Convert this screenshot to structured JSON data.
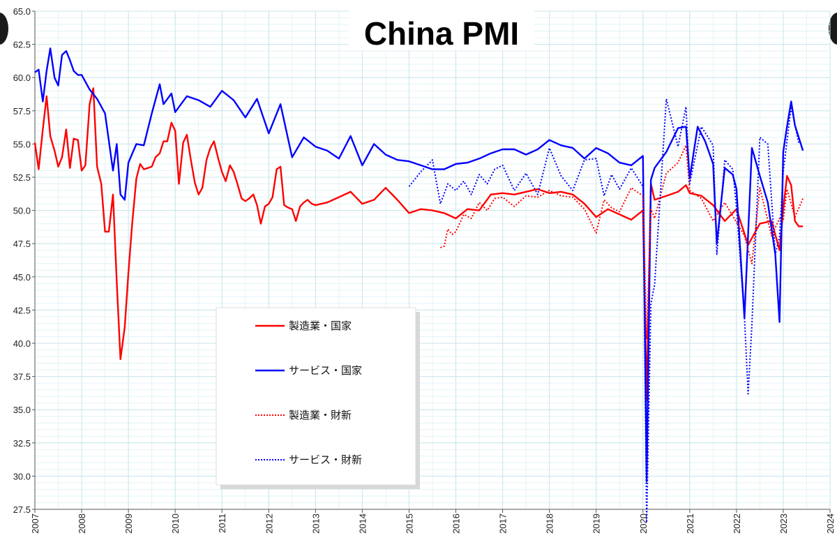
{
  "chart_data": {
    "type": "line",
    "title": "China PMI",
    "xlabel": "",
    "ylabel": "",
    "ylim": [
      27.5,
      65.0
    ],
    "xlim": [
      2007.0,
      2024.0
    ],
    "y_ticks": [
      "27.5",
      "30.0",
      "32.5",
      "35.0",
      "37.5",
      "40.0",
      "42.5",
      "45.0",
      "47.5",
      "50.0",
      "52.5",
      "55.0",
      "57.5",
      "60.0",
      "62.5",
      "65.0"
    ],
    "x_ticks": [
      "2007",
      "2008",
      "2009",
      "2010",
      "2011",
      "2012",
      "2013",
      "2014",
      "2015",
      "2016",
      "2017",
      "2018",
      "2019",
      "2020",
      "2021",
      "2022",
      "2023",
      "2024"
    ],
    "grid": true,
    "legend_position": "center-left",
    "series": [
      {
        "name": "製造業・国家",
        "color": "#ff0000",
        "style": "solid",
        "x": [
          2007.0,
          2007.08,
          2007.17,
          2007.25,
          2007.33,
          2007.42,
          2007.5,
          2007.58,
          2007.67,
          2007.75,
          2007.83,
          2007.92,
          2008.0,
          2008.08,
          2008.17,
          2008.25,
          2008.33,
          2008.42,
          2008.5,
          2008.58,
          2008.67,
          2008.75,
          2008.83,
          2008.92,
          2009.0,
          2009.08,
          2009.17,
          2009.25,
          2009.33,
          2009.42,
          2009.5,
          2009.58,
          2009.67,
          2009.75,
          2009.83,
          2009.92,
          2010.0,
          2010.08,
          2010.17,
          2010.25,
          2010.33,
          2010.42,
          2010.5,
          2010.58,
          2010.67,
          2010.75,
          2010.83,
          2010.92,
          2011.0,
          2011.08,
          2011.17,
          2011.25,
          2011.33,
          2011.42,
          2011.5,
          2011.58,
          2011.67,
          2011.75,
          2011.83,
          2011.92,
          2012.0,
          2012.08,
          2012.17,
          2012.25,
          2012.33,
          2012.42,
          2012.5,
          2012.58,
          2012.67,
          2012.75,
          2012.83,
          2012.92,
          2013.0,
          2013.25,
          2013.5,
          2013.75,
          2014.0,
          2014.25,
          2014.5,
          2014.75,
          2015.0,
          2015.25,
          2015.5,
          2015.75,
          2016.0,
          2016.25,
          2016.5,
          2016.75,
          2017.0,
          2017.25,
          2017.5,
          2017.75,
          2018.0,
          2018.25,
          2018.5,
          2018.75,
          2019.0,
          2019.25,
          2019.5,
          2019.75,
          2020.0,
          2020.08,
          2020.17,
          2020.25,
          2020.5,
          2020.75,
          2020.92,
          2021.0,
          2021.25,
          2021.5,
          2021.75,
          2022.0,
          2022.25,
          2022.5,
          2022.75,
          2022.92,
          2023.0,
          2023.08,
          2023.17,
          2023.25,
          2023.33,
          2023.42
        ],
        "values": [
          55.1,
          53.1,
          56.1,
          58.6,
          55.6,
          54.5,
          53.3,
          54.0,
          56.1,
          53.2,
          55.4,
          55.3,
          53.0,
          53.4,
          58.0,
          59.2,
          53.3,
          52.0,
          48.4,
          48.4,
          51.2,
          44.6,
          38.8,
          41.2,
          45.3,
          49.0,
          52.4,
          53.5,
          53.1,
          53.2,
          53.3,
          54.0,
          54.3,
          55.2,
          55.2,
          56.6,
          56.0,
          52.0,
          55.1,
          55.7,
          53.9,
          52.1,
          51.2,
          51.7,
          53.8,
          54.7,
          55.2,
          53.9,
          52.9,
          52.2,
          53.4,
          52.9,
          52.0,
          50.9,
          50.7,
          50.9,
          51.2,
          50.4,
          49.0,
          50.3,
          50.5,
          51.0,
          53.1,
          53.3,
          50.4,
          50.2,
          50.1,
          49.2,
          50.3,
          50.6,
          50.8,
          50.5,
          50.4,
          50.6,
          51.0,
          51.4,
          50.5,
          50.8,
          51.7,
          50.8,
          49.8,
          50.1,
          50.0,
          49.8,
          49.4,
          50.1,
          50.0,
          51.2,
          51.3,
          51.2,
          51.4,
          51.6,
          51.3,
          51.4,
          51.2,
          50.5,
          49.5,
          50.1,
          49.7,
          49.3,
          50.0,
          35.7,
          52.0,
          50.8,
          51.1,
          51.4,
          51.9,
          51.3,
          51.1,
          50.4,
          49.2,
          50.1,
          47.4,
          49.0,
          49.2,
          47.0,
          50.1,
          52.6,
          51.9,
          49.2,
          48.8,
          48.8
        ]
      },
      {
        "name": "サービス・国家",
        "color": "#0000ff",
        "style": "solid",
        "x": [
          2007.0,
          2007.08,
          2007.17,
          2007.25,
          2007.33,
          2007.42,
          2007.5,
          2007.58,
          2007.67,
          2007.75,
          2007.83,
          2007.92,
          2008.0,
          2008.17,
          2008.33,
          2008.5,
          2008.67,
          2008.75,
          2008.83,
          2008.92,
          2009.0,
          2009.17,
          2009.33,
          2009.5,
          2009.67,
          2009.75,
          2009.92,
          2010.0,
          2010.25,
          2010.5,
          2010.75,
          2011.0,
          2011.25,
          2011.5,
          2011.75,
          2012.0,
          2012.25,
          2012.5,
          2012.75,
          2013.0,
          2013.25,
          2013.5,
          2013.75,
          2014.0,
          2014.25,
          2014.5,
          2014.75,
          2015.0,
          2015.25,
          2015.5,
          2015.75,
          2016.0,
          2016.25,
          2016.5,
          2016.75,
          2017.0,
          2017.25,
          2017.5,
          2017.75,
          2018.0,
          2018.25,
          2018.5,
          2018.75,
          2019.0,
          2019.25,
          2019.5,
          2019.75,
          2020.0,
          2020.08,
          2020.17,
          2020.25,
          2020.5,
          2020.75,
          2020.92,
          2021.0,
          2021.17,
          2021.33,
          2021.5,
          2021.58,
          2021.75,
          2021.92,
          2022.0,
          2022.17,
          2022.33,
          2022.5,
          2022.67,
          2022.83,
          2022.92,
          2023.0,
          2023.08,
          2023.17,
          2023.25,
          2023.42
        ],
        "values": [
          60.4,
          60.6,
          58.2,
          60.5,
          62.2,
          60.0,
          59.4,
          61.7,
          62.0,
          61.3,
          60.5,
          60.2,
          60.2,
          59.1,
          58.4,
          57.3,
          53.0,
          55.0,
          51.2,
          50.8,
          53.6,
          55.0,
          54.9,
          57.3,
          59.5,
          58.0,
          58.8,
          57.4,
          58.6,
          58.3,
          57.8,
          59.0,
          58.3,
          57.0,
          58.4,
          55.8,
          58.0,
          54.0,
          55.5,
          54.8,
          54.5,
          53.9,
          55.6,
          53.4,
          55.0,
          54.2,
          53.8,
          53.7,
          53.4,
          53.1,
          53.1,
          53.5,
          53.6,
          53.9,
          54.3,
          54.6,
          54.6,
          54.2,
          54.6,
          55.3,
          54.9,
          54.7,
          53.9,
          54.7,
          54.3,
          53.6,
          53.4,
          54.1,
          29.6,
          52.3,
          53.2,
          54.4,
          56.2,
          56.3,
          52.4,
          56.3,
          55.2,
          53.5,
          47.5,
          53.2,
          52.7,
          51.6,
          41.9,
          54.7,
          52.6,
          50.6,
          46.7,
          41.6,
          54.4,
          56.3,
          58.2,
          56.4,
          54.5
        ]
      },
      {
        "name": "製造業・財新",
        "color": "#ff0000",
        "style": "dotted",
        "x": [
          2015.67,
          2015.75,
          2015.83,
          2015.92,
          2016.0,
          2016.17,
          2016.33,
          2016.5,
          2016.67,
          2016.83,
          2017.0,
          2017.25,
          2017.5,
          2017.75,
          2018.0,
          2018.25,
          2018.5,
          2018.75,
          2019.0,
          2019.17,
          2019.33,
          2019.5,
          2019.75,
          2020.0,
          2020.08,
          2020.17,
          2020.25,
          2020.5,
          2020.75,
          2020.92,
          2021.0,
          2021.25,
          2021.5,
          2021.75,
          2022.0,
          2022.17,
          2022.33,
          2022.5,
          2022.75,
          2022.92,
          2023.0,
          2023.08,
          2023.25,
          2023.42
        ],
        "values": [
          47.2,
          47.3,
          48.6,
          48.2,
          48.4,
          49.7,
          49.4,
          50.6,
          50.0,
          50.9,
          51.0,
          50.3,
          51.1,
          51.0,
          51.5,
          51.1,
          51.0,
          50.1,
          48.3,
          50.8,
          50.2,
          49.9,
          51.7,
          51.1,
          40.3,
          50.1,
          49.4,
          52.8,
          53.6,
          54.9,
          51.5,
          50.9,
          49.2,
          50.6,
          49.1,
          48.1,
          46.0,
          51.7,
          48.1,
          49.4,
          49.2,
          51.6,
          49.5,
          50.9
        ]
      },
      {
        "name": "サービス・財新",
        "color": "#0000ff",
        "style": "dotted",
        "x": [
          2015.0,
          2015.25,
          2015.5,
          2015.67,
          2015.83,
          2016.0,
          2016.17,
          2016.33,
          2016.5,
          2016.67,
          2016.83,
          2017.0,
          2017.25,
          2017.5,
          2017.75,
          2018.0,
          2018.25,
          2018.5,
          2018.75,
          2019.0,
          2019.17,
          2019.33,
          2019.5,
          2019.75,
          2020.0,
          2020.08,
          2020.17,
          2020.25,
          2020.5,
          2020.75,
          2020.92,
          2021.0,
          2021.25,
          2021.5,
          2021.58,
          2021.75,
          2021.92,
          2022.0,
          2022.17,
          2022.25,
          2022.33,
          2022.5,
          2022.67,
          2022.83,
          2022.92,
          2023.0,
          2023.17,
          2023.33
        ],
        "values": [
          51.8,
          52.9,
          53.8,
          50.5,
          52.0,
          51.5,
          52.2,
          51.2,
          52.7,
          52.0,
          53.1,
          53.4,
          51.5,
          52.8,
          51.2,
          54.7,
          52.6,
          51.5,
          53.8,
          53.9,
          51.1,
          52.7,
          51.6,
          53.2,
          51.8,
          26.5,
          43.0,
          44.4,
          58.4,
          54.8,
          57.8,
          52.0,
          56.3,
          54.9,
          46.7,
          53.8,
          53.1,
          50.2,
          42.0,
          36.2,
          41.4,
          55.5,
          55.0,
          46.7,
          48.0,
          52.9,
          57.8,
          55.1
        ]
      }
    ]
  }
}
